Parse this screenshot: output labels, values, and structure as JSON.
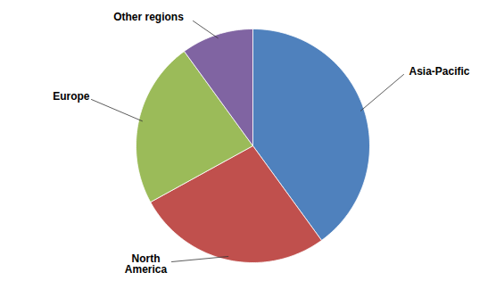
{
  "chart_data": {
    "type": "pie",
    "categories": [
      "Asia-Pacific",
      "North America",
      "Europe",
      "Other regions"
    ],
    "values": [
      40,
      27,
      23,
      10
    ],
    "colors": [
      "#4f81bd",
      "#c0504d",
      "#9bbb59",
      "#8064a2"
    ]
  }
}
